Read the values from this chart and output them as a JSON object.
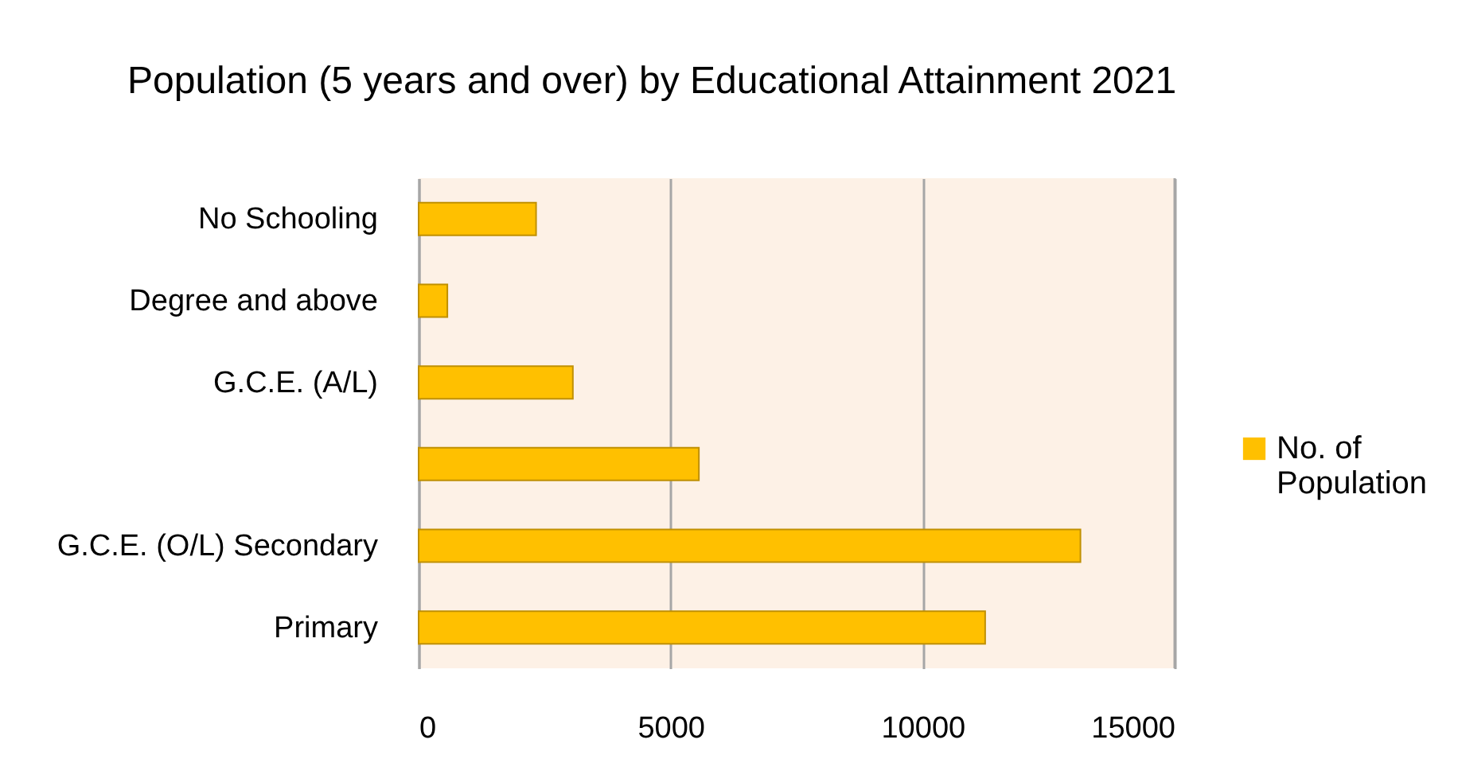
{
  "chart_data": {
    "type": "bar",
    "orientation": "horizontal",
    "title": "Population (5 years and over) by Educational Attainment 2021",
    "categories": [
      "No Schooling",
      "Degree and above",
      "G.C.E. (A/L)",
      null,
      "G.C.E. (O/L) Secondary",
      "Primary"
    ],
    "series": [
      {
        "name": "No. of Population",
        "color": "#ffc000",
        "values": [
          2330,
          570,
          3060,
          5560,
          13130,
          11240
        ]
      }
    ],
    "xlim": [
      0,
      15000
    ],
    "xticks": [
      0,
      5000,
      10000,
      15000
    ],
    "grid": "x",
    "legend": "right"
  }
}
